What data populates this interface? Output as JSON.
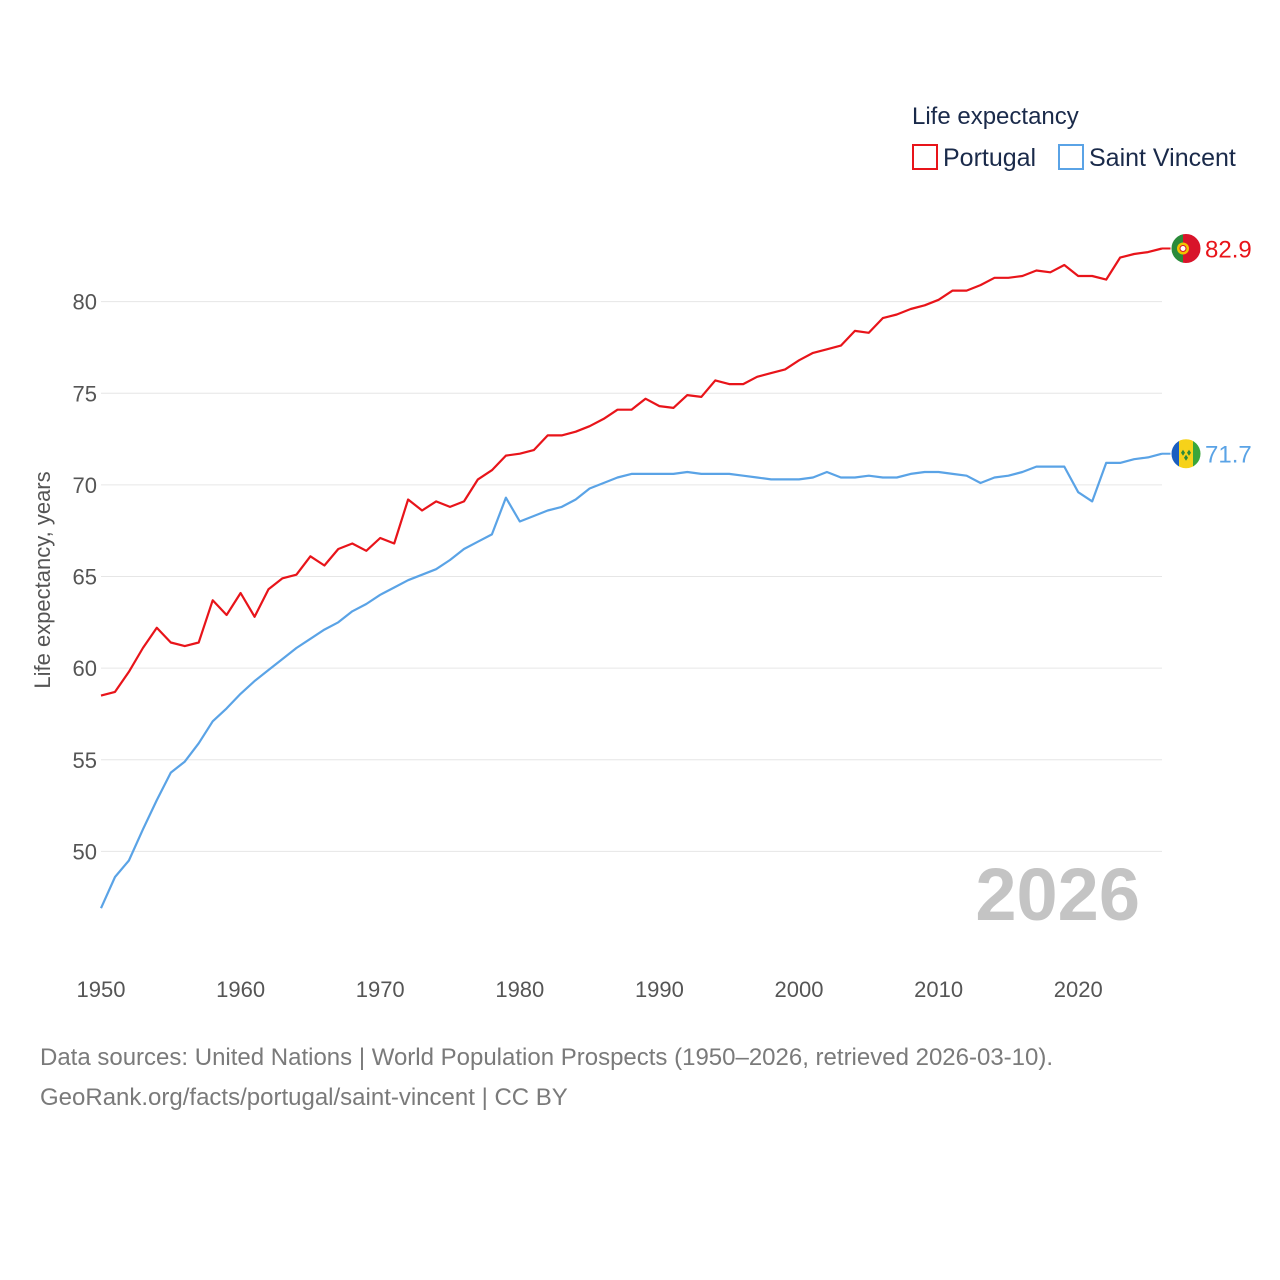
{
  "chart_data": {
    "type": "line",
    "ylabel": "Life expectancy, years",
    "xlabel": "",
    "xlim": [
      1950,
      2026
    ],
    "ylim": [
      45,
      85
    ],
    "yticks": [
      50,
      55,
      60,
      65,
      70,
      75,
      80
    ],
    "xticks": [
      1950,
      1960,
      1970,
      1980,
      1990,
      2000,
      2010,
      2020
    ],
    "legend_title": "Life expectancy",
    "legend_position": "top-right",
    "current_year": "2026",
    "x": [
      1950,
      1951,
      1952,
      1953,
      1954,
      1955,
      1956,
      1957,
      1958,
      1959,
      1960,
      1961,
      1962,
      1963,
      1964,
      1965,
      1966,
      1967,
      1968,
      1969,
      1970,
      1971,
      1972,
      1973,
      1974,
      1975,
      1976,
      1977,
      1978,
      1979,
      1980,
      1981,
      1982,
      1983,
      1984,
      1985,
      1986,
      1987,
      1988,
      1989,
      1990,
      1991,
      1992,
      1993,
      1994,
      1995,
      1996,
      1997,
      1998,
      1999,
      2000,
      2001,
      2002,
      2003,
      2004,
      2005,
      2006,
      2007,
      2008,
      2009,
      2010,
      2011,
      2012,
      2013,
      2014,
      2015,
      2016,
      2017,
      2018,
      2019,
      2020,
      2021,
      2022,
      2023,
      2024,
      2025,
      2026
    ],
    "series": [
      {
        "name": "Portugal",
        "color": "#e8141a",
        "end_label": "82.9",
        "flag": "portugal-flag",
        "values": [
          58.5,
          58.7,
          59.8,
          61.1,
          62.2,
          61.4,
          61.2,
          61.4,
          63.7,
          62.9,
          64.1,
          62.8,
          64.3,
          64.9,
          65.1,
          66.1,
          65.6,
          66.5,
          66.8,
          66.4,
          67.1,
          66.8,
          69.2,
          68.6,
          69.1,
          68.8,
          69.1,
          70.3,
          70.8,
          71.6,
          71.7,
          71.9,
          72.7,
          72.7,
          72.9,
          73.2,
          73.6,
          74.1,
          74.1,
          74.7,
          74.3,
          74.2,
          74.9,
          74.8,
          75.7,
          75.5,
          75.5,
          75.9,
          76.1,
          76.3,
          76.8,
          77.2,
          77.4,
          77.6,
          78.4,
          78.3,
          79.1,
          79.3,
          79.6,
          79.8,
          80.1,
          80.6,
          80.6,
          80.9,
          81.3,
          81.3,
          81.4,
          81.7,
          81.6,
          82.0,
          81.4,
          81.4,
          81.2,
          82.4,
          82.6,
          82.7,
          82.9
        ]
      },
      {
        "name": "Saint Vincent",
        "color": "#5aa3e6",
        "end_label": "71.7",
        "flag": "saint-vincent-flag",
        "values": [
          46.9,
          48.6,
          49.5,
          51.2,
          52.8,
          54.3,
          54.9,
          55.9,
          57.1,
          57.8,
          58.6,
          59.3,
          59.9,
          60.5,
          61.1,
          61.6,
          62.1,
          62.5,
          63.1,
          63.5,
          64.0,
          64.4,
          64.8,
          65.1,
          65.4,
          65.9,
          66.5,
          66.9,
          67.3,
          69.3,
          68.0,
          68.3,
          68.6,
          68.8,
          69.2,
          69.8,
          70.1,
          70.4,
          70.6,
          70.6,
          70.6,
          70.6,
          70.7,
          70.6,
          70.6,
          70.6,
          70.5,
          70.4,
          70.3,
          70.3,
          70.3,
          70.4,
          70.7,
          70.4,
          70.4,
          70.5,
          70.4,
          70.4,
          70.6,
          70.7,
          70.7,
          70.6,
          70.5,
          70.1,
          70.4,
          70.5,
          70.7,
          71.0,
          71.0,
          71.0,
          69.6,
          69.1,
          71.2,
          71.2,
          71.4,
          71.5,
          71.7
        ]
      }
    ]
  },
  "source_line_1": "Data sources: United Nations | World Population Prospects (1950–2026, retrieved 2026-03-10).",
  "source_line_2": "GeoRank.org/facts/portugal/saint-vincent | CC BY"
}
